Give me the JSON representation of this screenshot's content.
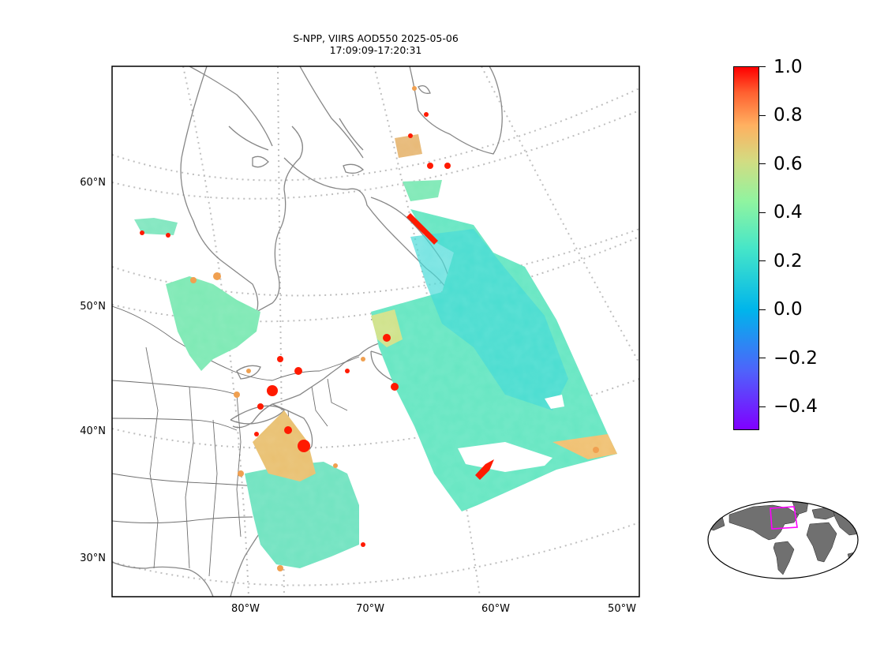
{
  "title": {
    "line1": "S-NPP, VIIRS AOD550 2025-05-06",
    "line2": "17:09:09-17:20:31"
  },
  "map": {
    "lat_labels": [
      "60°N",
      "50°N",
      "40°N",
      "30°N"
    ],
    "lon_labels": [
      "80°W",
      "70°W",
      "60°W",
      "50°W"
    ],
    "land_outline_color": "#808080",
    "graticule_color": "#bbbbbb"
  },
  "colorbar": {
    "min": -0.5,
    "max": 1.0,
    "ticks": [
      "1.0",
      "0.8",
      "0.6",
      "0.4",
      "0.2",
      "0.0",
      "−0.2",
      "−0.4"
    ],
    "colormap": "rainbow",
    "colors": [
      "#8000ff",
      "#2adddd",
      "#80ff80",
      "#d4dd80",
      "#ff8040",
      "#ff0000"
    ]
  },
  "inset": {
    "land_color": "#707070",
    "region_box_color": "#ff00ff"
  }
}
